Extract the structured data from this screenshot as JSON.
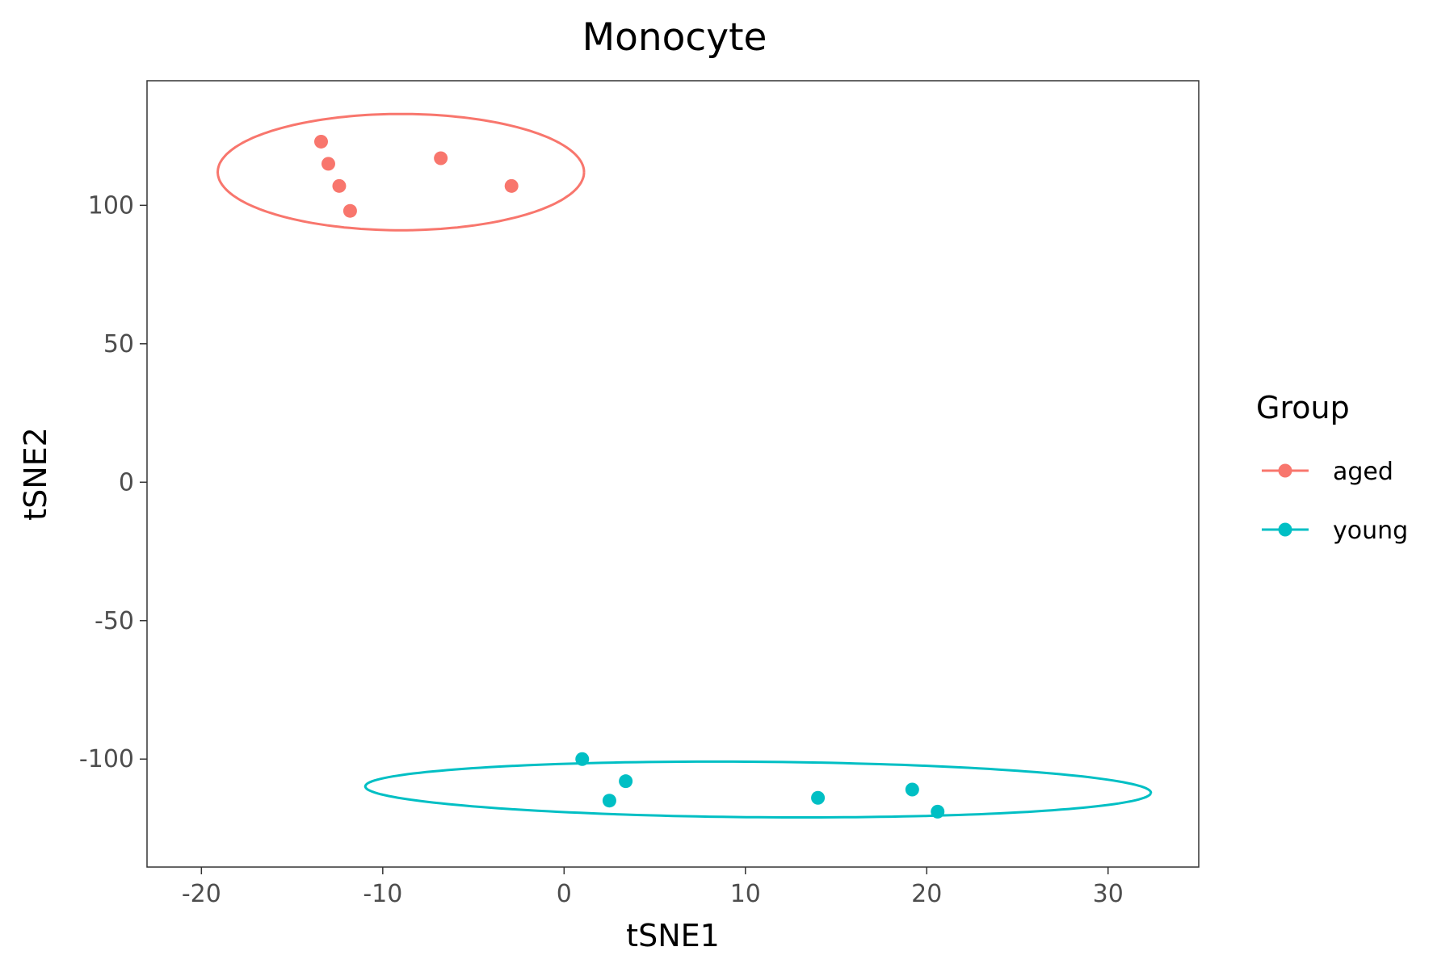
{
  "chart_data": {
    "type": "scatter",
    "title": "Monocyte",
    "xlabel": "tSNE1",
    "ylabel": "tSNE2",
    "xlim": [
      -23,
      35
    ],
    "ylim": [
      -139,
      145
    ],
    "x_ticks": [
      -20,
      -10,
      0,
      10,
      20,
      30
    ],
    "y_ticks": [
      100,
      50,
      0,
      -50,
      -100
    ],
    "grid": false,
    "legend": {
      "title": "Group",
      "placement": "right"
    },
    "series": [
      {
        "name": "aged",
        "color": "#F8766D",
        "points": [
          {
            "x": -13.4,
            "y": 123.0
          },
          {
            "x": -13.0,
            "y": 115.0
          },
          {
            "x": -12.4,
            "y": 107.0
          },
          {
            "x": -11.8,
            "y": 98.0
          },
          {
            "x": -6.8,
            "y": 117.0
          },
          {
            "x": -2.9,
            "y": 107.0
          }
        ],
        "ellipse": {
          "cx": -9.0,
          "cy": 112.0,
          "a": 10.1,
          "b": 21.0,
          "tilt_deg": 0
        }
      },
      {
        "name": "young",
        "color": "#00BFC4",
        "points": [
          {
            "x": 1.0,
            "y": -100.0
          },
          {
            "x": 2.5,
            "y": -115.0
          },
          {
            "x": 3.4,
            "y": -108.0
          },
          {
            "x": 14.0,
            "y": -114.0
          },
          {
            "x": 19.2,
            "y": -111.0
          },
          {
            "x": 20.6,
            "y": -119.0
          }
        ],
        "ellipse": {
          "cx": 10.7,
          "cy": -111.0,
          "a": 21.7,
          "b": 10.0,
          "tilt_deg": -3.8
        }
      }
    ]
  }
}
